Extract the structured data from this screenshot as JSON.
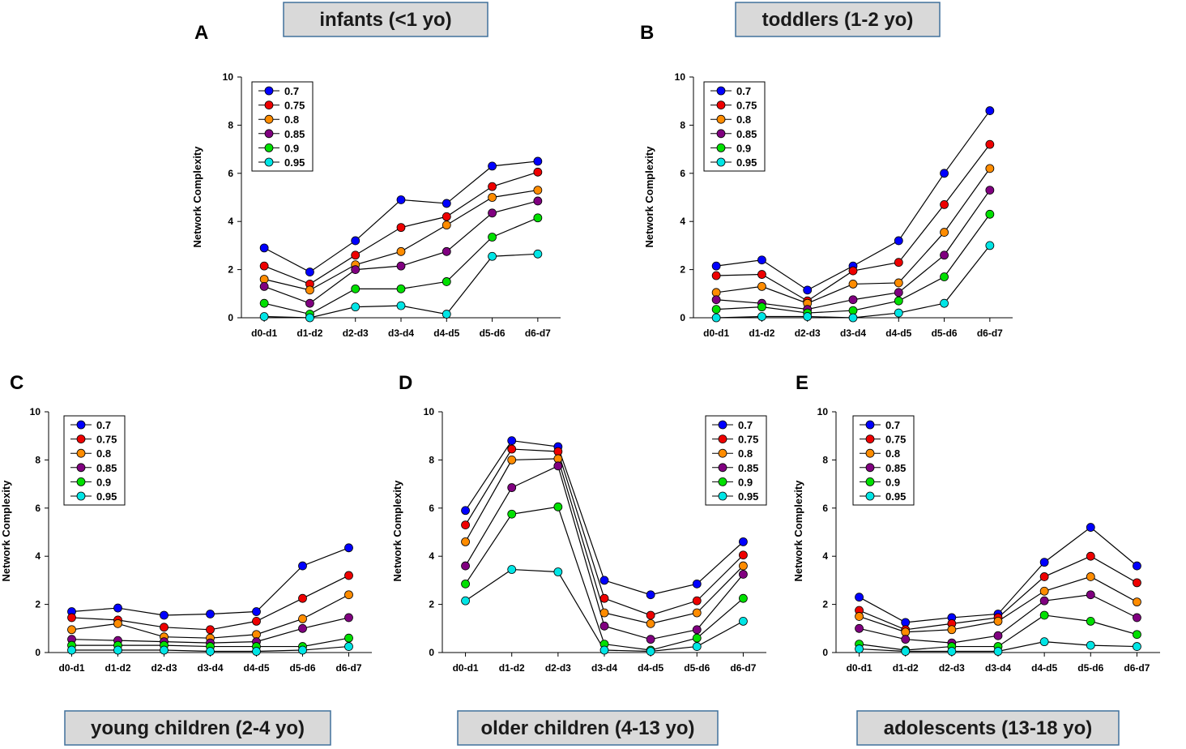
{
  "figure": {
    "ylabel": "Network Complexity",
    "categories": [
      "d0-d1",
      "d1-d2",
      "d2-d3",
      "d3-d4",
      "d4-d5",
      "d5-d6",
      "d6-d7"
    ],
    "yticks": [
      "0",
      "2",
      "4",
      "6",
      "8",
      "10"
    ],
    "legend_labels": [
      "0.7",
      "0.75",
      "0.8",
      "0.85",
      "0.9",
      "0.95"
    ],
    "colors": {
      "0.7": "#0000ff",
      "0.75": "#ee0000",
      "0.8": "#ff8c00",
      "0.85": "#800080",
      "0.9": "#00e000",
      "0.95": "#00e5e5"
    }
  },
  "chart_data": [
    {
      "type": "line",
      "panel": "A",
      "title": "infants (<1 yo)",
      "xlabel": "",
      "ylabel": "Network Complexity",
      "ylim": [
        0,
        10
      ],
      "categories": [
        "d0-d1",
        "d1-d2",
        "d2-d3",
        "d3-d4",
        "d4-d5",
        "d5-d6",
        "d6-d7"
      ],
      "series": [
        {
          "name": "0.7",
          "values": [
            2.9,
            1.9,
            3.2,
            4.9,
            4.75,
            6.3,
            6.5
          ]
        },
        {
          "name": "0.75",
          "values": [
            2.15,
            1.4,
            2.6,
            3.75,
            4.2,
            5.45,
            6.05
          ]
        },
        {
          "name": "0.8",
          "values": [
            1.6,
            1.15,
            2.2,
            2.75,
            3.85,
            5.0,
            5.3
          ]
        },
        {
          "name": "0.85",
          "values": [
            1.3,
            0.6,
            2.0,
            2.15,
            2.75,
            4.35,
            4.85
          ]
        },
        {
          "name": "0.9",
          "values": [
            0.6,
            0.15,
            1.2,
            1.2,
            1.5,
            3.35,
            4.15
          ]
        },
        {
          "name": "0.95",
          "values": [
            0.05,
            0.0,
            0.45,
            0.5,
            0.15,
            2.55,
            2.65
          ]
        }
      ]
    },
    {
      "type": "line",
      "panel": "B",
      "title": "toddlers (1-2 yo)",
      "xlabel": "",
      "ylabel": "Network Complexity",
      "ylim": [
        0,
        10
      ],
      "categories": [
        "d0-d1",
        "d1-d2",
        "d2-d3",
        "d3-d4",
        "d4-d5",
        "d5-d6",
        "d6-d7"
      ],
      "series": [
        {
          "name": "0.7",
          "values": [
            2.15,
            2.4,
            1.15,
            2.15,
            3.2,
            6.0,
            8.6
          ]
        },
        {
          "name": "0.75",
          "values": [
            1.75,
            1.8,
            0.7,
            1.95,
            2.3,
            4.7,
            7.2
          ]
        },
        {
          "name": "0.8",
          "values": [
            1.05,
            1.3,
            0.6,
            1.4,
            1.45,
            3.55,
            6.2
          ]
        },
        {
          "name": "0.85",
          "values": [
            0.75,
            0.6,
            0.35,
            0.75,
            1.05,
            2.6,
            5.3
          ]
        },
        {
          "name": "0.9",
          "values": [
            0.35,
            0.45,
            0.2,
            0.3,
            0.7,
            1.7,
            4.3
          ]
        },
        {
          "name": "0.95",
          "values": [
            0.0,
            0.05,
            0.05,
            0.0,
            0.2,
            0.6,
            3.0
          ]
        }
      ]
    },
    {
      "type": "line",
      "panel": "C",
      "title": "young children (2-4 yo)",
      "xlabel": "",
      "ylabel": "Network Complexity",
      "ylim": [
        0,
        10
      ],
      "categories": [
        "d0-d1",
        "d1-d2",
        "d2-d3",
        "d3-d4",
        "d4-d5",
        "d5-d6",
        "d6-d7"
      ],
      "series": [
        {
          "name": "0.7",
          "values": [
            1.7,
            1.85,
            1.55,
            1.6,
            1.7,
            3.6,
            4.35
          ]
        },
        {
          "name": "0.75",
          "values": [
            1.45,
            1.35,
            1.05,
            0.95,
            1.3,
            2.25,
            3.2
          ]
        },
        {
          "name": "0.8",
          "values": [
            0.95,
            1.2,
            0.65,
            0.6,
            0.75,
            1.4,
            2.4
          ]
        },
        {
          "name": "0.85",
          "values": [
            0.55,
            0.5,
            0.45,
            0.4,
            0.45,
            1.0,
            1.45
          ]
        },
        {
          "name": "0.9",
          "values": [
            0.3,
            0.3,
            0.3,
            0.25,
            0.25,
            0.25,
            0.6
          ]
        },
        {
          "name": "0.95",
          "values": [
            0.1,
            0.1,
            0.1,
            0.05,
            0.05,
            0.1,
            0.25
          ]
        }
      ]
    },
    {
      "type": "line",
      "panel": "D",
      "title": "older children (4-13 yo)",
      "xlabel": "",
      "ylabel": "Network Complexity",
      "ylim": [
        0,
        10
      ],
      "categories": [
        "d0-d1",
        "d1-d2",
        "d2-d3",
        "d3-d4",
        "d4-d5",
        "d5-d6",
        "d6-d7"
      ],
      "series": [
        {
          "name": "0.7",
          "values": [
            5.9,
            8.8,
            8.55,
            3.0,
            2.4,
            2.85,
            4.6
          ]
        },
        {
          "name": "0.75",
          "values": [
            5.3,
            8.45,
            8.35,
            2.25,
            1.55,
            2.15,
            4.05
          ]
        },
        {
          "name": "0.8",
          "values": [
            4.6,
            8.0,
            8.05,
            1.65,
            1.2,
            1.65,
            3.6
          ]
        },
        {
          "name": "0.85",
          "values": [
            3.6,
            6.85,
            7.75,
            1.1,
            0.55,
            0.95,
            3.25
          ]
        },
        {
          "name": "0.9",
          "values": [
            2.85,
            5.75,
            6.05,
            0.35,
            0.1,
            0.6,
            2.25
          ]
        },
        {
          "name": "0.95",
          "values": [
            2.15,
            3.45,
            3.35,
            0.1,
            0.05,
            0.25,
            1.3
          ]
        }
      ]
    },
    {
      "type": "line",
      "panel": "E",
      "title": "adolescents (13-18 yo)",
      "xlabel": "",
      "ylabel": "Network Complexity",
      "ylim": [
        0,
        10
      ],
      "categories": [
        "d0-d1",
        "d1-d2",
        "d2-d3",
        "d3-d4",
        "d4-d5",
        "d5-d6",
        "d6-d7"
      ],
      "series": [
        {
          "name": "0.7",
          "values": [
            2.3,
            1.25,
            1.45,
            1.6,
            3.75,
            5.2,
            3.6
          ]
        },
        {
          "name": "0.75",
          "values": [
            1.75,
            0.95,
            1.2,
            1.45,
            3.15,
            4.0,
            2.9
          ]
        },
        {
          "name": "0.8",
          "values": [
            1.5,
            0.85,
            0.95,
            1.3,
            2.55,
            3.15,
            2.1
          ]
        },
        {
          "name": "0.85",
          "values": [
            1.0,
            0.55,
            0.4,
            0.7,
            2.15,
            2.4,
            1.45
          ]
        },
        {
          "name": "0.9",
          "values": [
            0.35,
            0.1,
            0.25,
            0.25,
            1.55,
            1.3,
            0.75
          ]
        },
        {
          "name": "0.95",
          "values": [
            0.15,
            0.05,
            0.05,
            0.05,
            0.45,
            0.3,
            0.25
          ]
        }
      ]
    }
  ]
}
